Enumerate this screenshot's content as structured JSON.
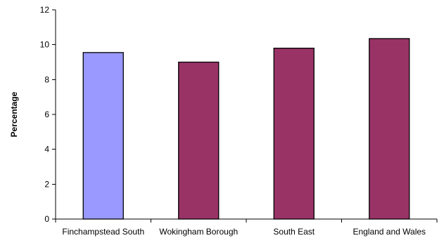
{
  "chart_data": {
    "type": "bar",
    "categories": [
      "Finchampstead South",
      "Wokingham Borough",
      "South East",
      "England and Wales"
    ],
    "values": [
      9.55,
      9.0,
      9.8,
      10.35
    ],
    "bar_colors": [
      "#9999ff",
      "#993366",
      "#993366",
      "#993366"
    ],
    "title": "",
    "xlabel": "",
    "ylabel": "Percentage",
    "ylim": [
      0,
      12
    ],
    "yticks": [
      0,
      2,
      4,
      6,
      8,
      10,
      12
    ],
    "grid": false,
    "legend": "none"
  }
}
